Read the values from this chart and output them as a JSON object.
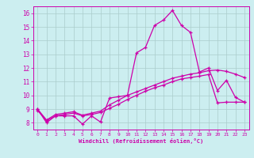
{
  "background_color": "#cceef0",
  "grid_color": "#aacccc",
  "line_color": "#cc00aa",
  "xlabel": "Windchill (Refroidissement éolien,°C)",
  "xlim": [
    -0.5,
    23.5
  ],
  "ylim": [
    7.5,
    16.5
  ],
  "xticks": [
    0,
    1,
    2,
    3,
    4,
    5,
    6,
    7,
    8,
    9,
    10,
    11,
    12,
    13,
    14,
    15,
    16,
    17,
    18,
    19,
    20,
    21,
    22,
    23
  ],
  "yticks": [
    8,
    9,
    10,
    11,
    12,
    13,
    14,
    15,
    16
  ],
  "series": [
    [
      9.0,
      8.0,
      8.5,
      8.5,
      8.5,
      7.9,
      8.5,
      8.05,
      9.8,
      9.9,
      10.0,
      13.1,
      13.5,
      15.1,
      15.5,
      16.2,
      15.1,
      14.6,
      11.7,
      12.0,
      10.35,
      11.1,
      9.85,
      9.5
    ],
    [
      9.0,
      8.2,
      8.6,
      8.7,
      8.8,
      8.55,
      8.7,
      8.85,
      9.3,
      9.65,
      10.0,
      10.25,
      10.5,
      10.75,
      11.0,
      11.25,
      11.4,
      11.55,
      11.65,
      11.8,
      11.85,
      11.75,
      11.55,
      11.3
    ],
    [
      8.9,
      8.15,
      8.5,
      8.6,
      8.7,
      8.5,
      8.6,
      8.75,
      9.05,
      9.35,
      9.7,
      10.0,
      10.3,
      10.55,
      10.75,
      11.0,
      11.2,
      11.3,
      11.4,
      11.52,
      9.45,
      9.5,
      9.5,
      9.5
    ]
  ]
}
